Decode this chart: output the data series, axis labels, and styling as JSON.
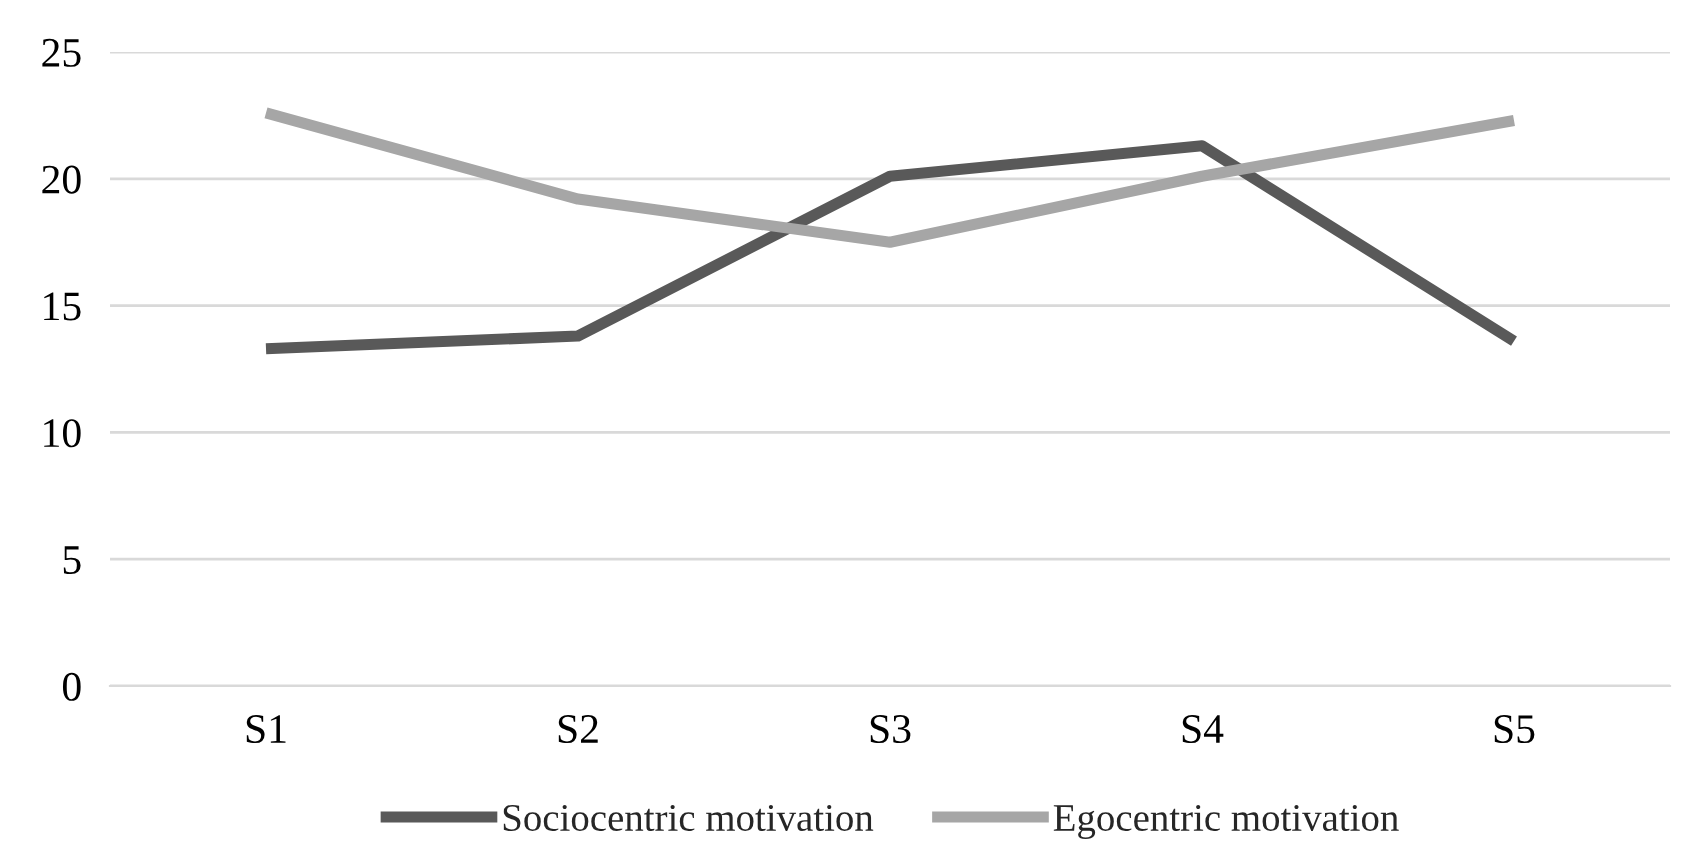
{
  "chart_data": {
    "type": "line",
    "categories": [
      "S1",
      "S2",
      "S3",
      "S4",
      "S5"
    ],
    "series": [
      {
        "name": "Sociocentric motivation",
        "color": "#595959",
        "values": [
          13.3,
          13.8,
          20.1,
          21.3,
          13.6
        ]
      },
      {
        "name": "Egocentric motivation",
        "color": "#a6a6a6",
        "values": [
          22.6,
          19.2,
          17.5,
          20.1,
          22.3
        ]
      }
    ],
    "ylim": [
      0,
      25
    ],
    "yticks": [
      0,
      5,
      10,
      15,
      20,
      25
    ],
    "grid": "y",
    "legend": "bottom",
    "marker": "none",
    "line_style": "solid"
  }
}
